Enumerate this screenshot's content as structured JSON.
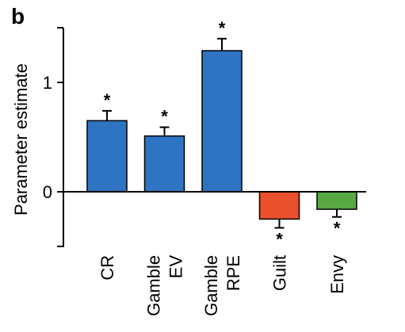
{
  "panel_label": "b",
  "chart_data": {
    "type": "bar",
    "ylabel": "Parameter estimate",
    "ylim": [
      -0.5,
      1.5
    ],
    "yticks": [
      0,
      1
    ],
    "categories": [
      {
        "lines": [
          "CR"
        ],
        "value": 0.65,
        "err": 0.09,
        "color": "#2f74c3",
        "significance": "*"
      },
      {
        "lines": [
          "Gamble",
          "EV"
        ],
        "value": 0.51,
        "err": 0.08,
        "color": "#2f74c3",
        "significance": "*"
      },
      {
        "lines": [
          "Gamble",
          "RPE"
        ],
        "value": 1.29,
        "err": 0.11,
        "color": "#2f74c3",
        "significance": "*"
      },
      {
        "lines": [
          "Guilt"
        ],
        "value": -0.25,
        "err": 0.08,
        "color": "#e9502d",
        "significance": "*"
      },
      {
        "lines": [
          "Envy"
        ],
        "value": -0.16,
        "err": 0.07,
        "color": "#58a844",
        "significance": "*"
      }
    ]
  }
}
